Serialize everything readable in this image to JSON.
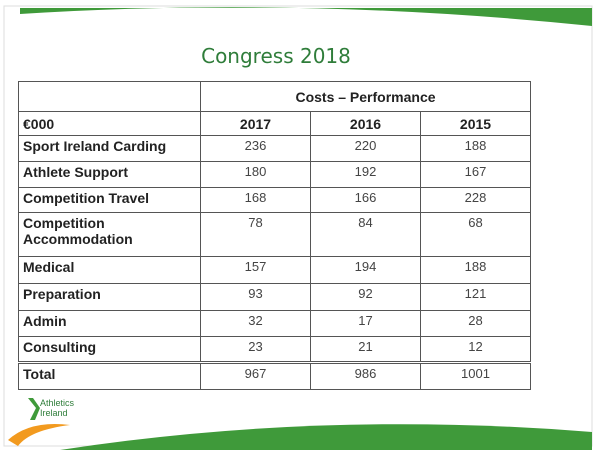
{
  "title": "Congress 2018",
  "logo": {
    "line1": "Athletics",
    "line2": "Ireland"
  },
  "table": {
    "group_header": "Costs – Performance",
    "columns": [
      "€000",
      "2017",
      "2016",
      "2015"
    ],
    "rows": [
      [
        "Sport Ireland Carding",
        236,
        220,
        188
      ],
      [
        "Athlete Support",
        180,
        192,
        167
      ],
      [
        "Competition Travel",
        168,
        166,
        228
      ],
      [
        "Competition Accommodation",
        78,
        84,
        68
      ],
      [
        "Medical",
        157,
        194,
        188
      ],
      [
        "Preparation",
        93,
        92,
        121
      ],
      [
        "Admin",
        32,
        17,
        28
      ],
      [
        "Consulting",
        23,
        21,
        12
      ]
    ],
    "total": [
      "Total",
      967,
      986,
      1001
    ]
  }
}
